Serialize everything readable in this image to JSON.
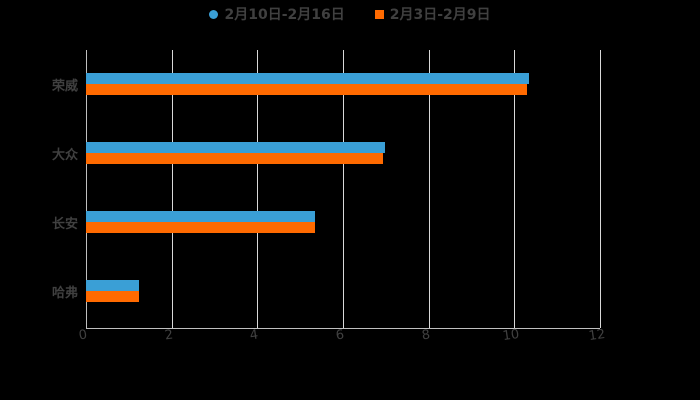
{
  "chart_data": {
    "type": "bar",
    "orientation": "horizontal",
    "title": "",
    "xlabel": "",
    "ylabel": "",
    "categories": [
      "荣威",
      "大众",
      "长安",
      "哈弗"
    ],
    "series": [
      {
        "name": "2月10日-2月16日",
        "color": "#3a9fd6",
        "values": [
          10.34,
          6.98,
          5.35,
          1.24
        ]
      },
      {
        "name": "2月3日-2月9日",
        "color": "#ff6a00",
        "values": [
          10.3,
          6.93,
          5.35,
          1.24
        ]
      }
    ],
    "xlim": [
      0,
      12
    ],
    "xticks": [
      "0",
      "2",
      "4",
      "6",
      "8",
      "10",
      "12"
    ],
    "grid": true,
    "legend_position": "top"
  }
}
